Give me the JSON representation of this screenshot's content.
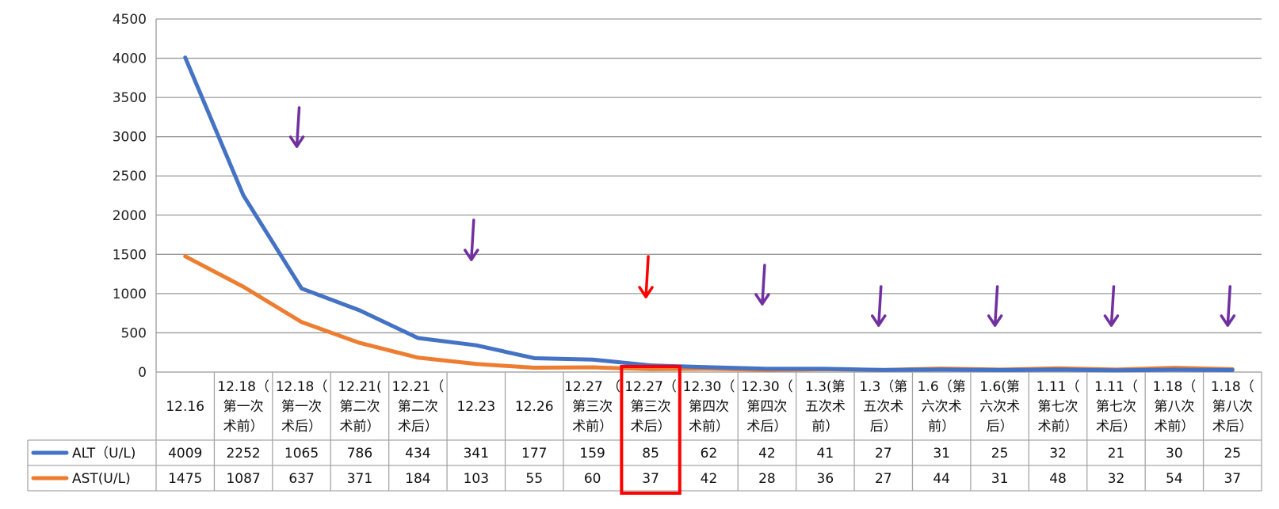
{
  "chart_data": {
    "type": "line",
    "title": "",
    "xlabel": "",
    "ylabel": "",
    "ylim": [
      0,
      4500
    ],
    "yticks": [
      "0",
      "500",
      "1000",
      "1500",
      "2000",
      "2500",
      "3000",
      "3500",
      "4000",
      "4500"
    ],
    "grid": true,
    "legend": "data-table-left",
    "categories": [
      [
        "12.16"
      ],
      [
        "12.18（",
        "第一次",
        "术前）"
      ],
      [
        "12.18（",
        "第一次",
        "术后）"
      ],
      [
        "12.21(",
        "第二次",
        "术前）"
      ],
      [
        "12.21（",
        "第二次",
        "术后）"
      ],
      [
        "12.23"
      ],
      [
        "12.26"
      ],
      [
        "12.27 （",
        "第三次",
        "术前）"
      ],
      [
        "12.27（",
        "第三次",
        "术后）"
      ],
      [
        "12.30（",
        "第四次",
        "术前）"
      ],
      [
        "12.30（",
        "第四次",
        "术后）"
      ],
      [
        "1.3(第",
        "五次术",
        "前）"
      ],
      [
        "1.3（第",
        "五次术",
        "后）"
      ],
      [
        "1.6（第",
        "六次术",
        "前）"
      ],
      [
        "1.6(第",
        "六次术",
        "后）"
      ],
      [
        "1.11（",
        "第七次",
        "术前）"
      ],
      [
        "1.11（",
        "第七次",
        "术后）"
      ],
      [
        "1.18（",
        "第八次",
        "术前）"
      ],
      [
        "1.18（",
        "第八次",
        "术后）"
      ]
    ],
    "series": [
      {
        "name": "ALT（U/L)",
        "color": "#4472C4",
        "values": [
          4009,
          2252,
          1065,
          786,
          434,
          341,
          177,
          159,
          85,
          62,
          42,
          41,
          27,
          31,
          25,
          32,
          21,
          30,
          25
        ]
      },
      {
        "name": "AST(U/L)",
        "color": "#ED7D31",
        "values": [
          1475,
          1087,
          637,
          371,
          184,
          103,
          55,
          60,
          37,
          42,
          28,
          36,
          27,
          44,
          31,
          48,
          32,
          54,
          37
        ]
      }
    ],
    "annotations": {
      "purple_arrows_at": [
        2,
        5,
        10,
        12,
        14,
        16,
        18
      ],
      "red_arrow_at": 8,
      "highlighted_column": 8,
      "arrow_color": "#7030A0",
      "highlight_color": "#FF0000"
    }
  }
}
